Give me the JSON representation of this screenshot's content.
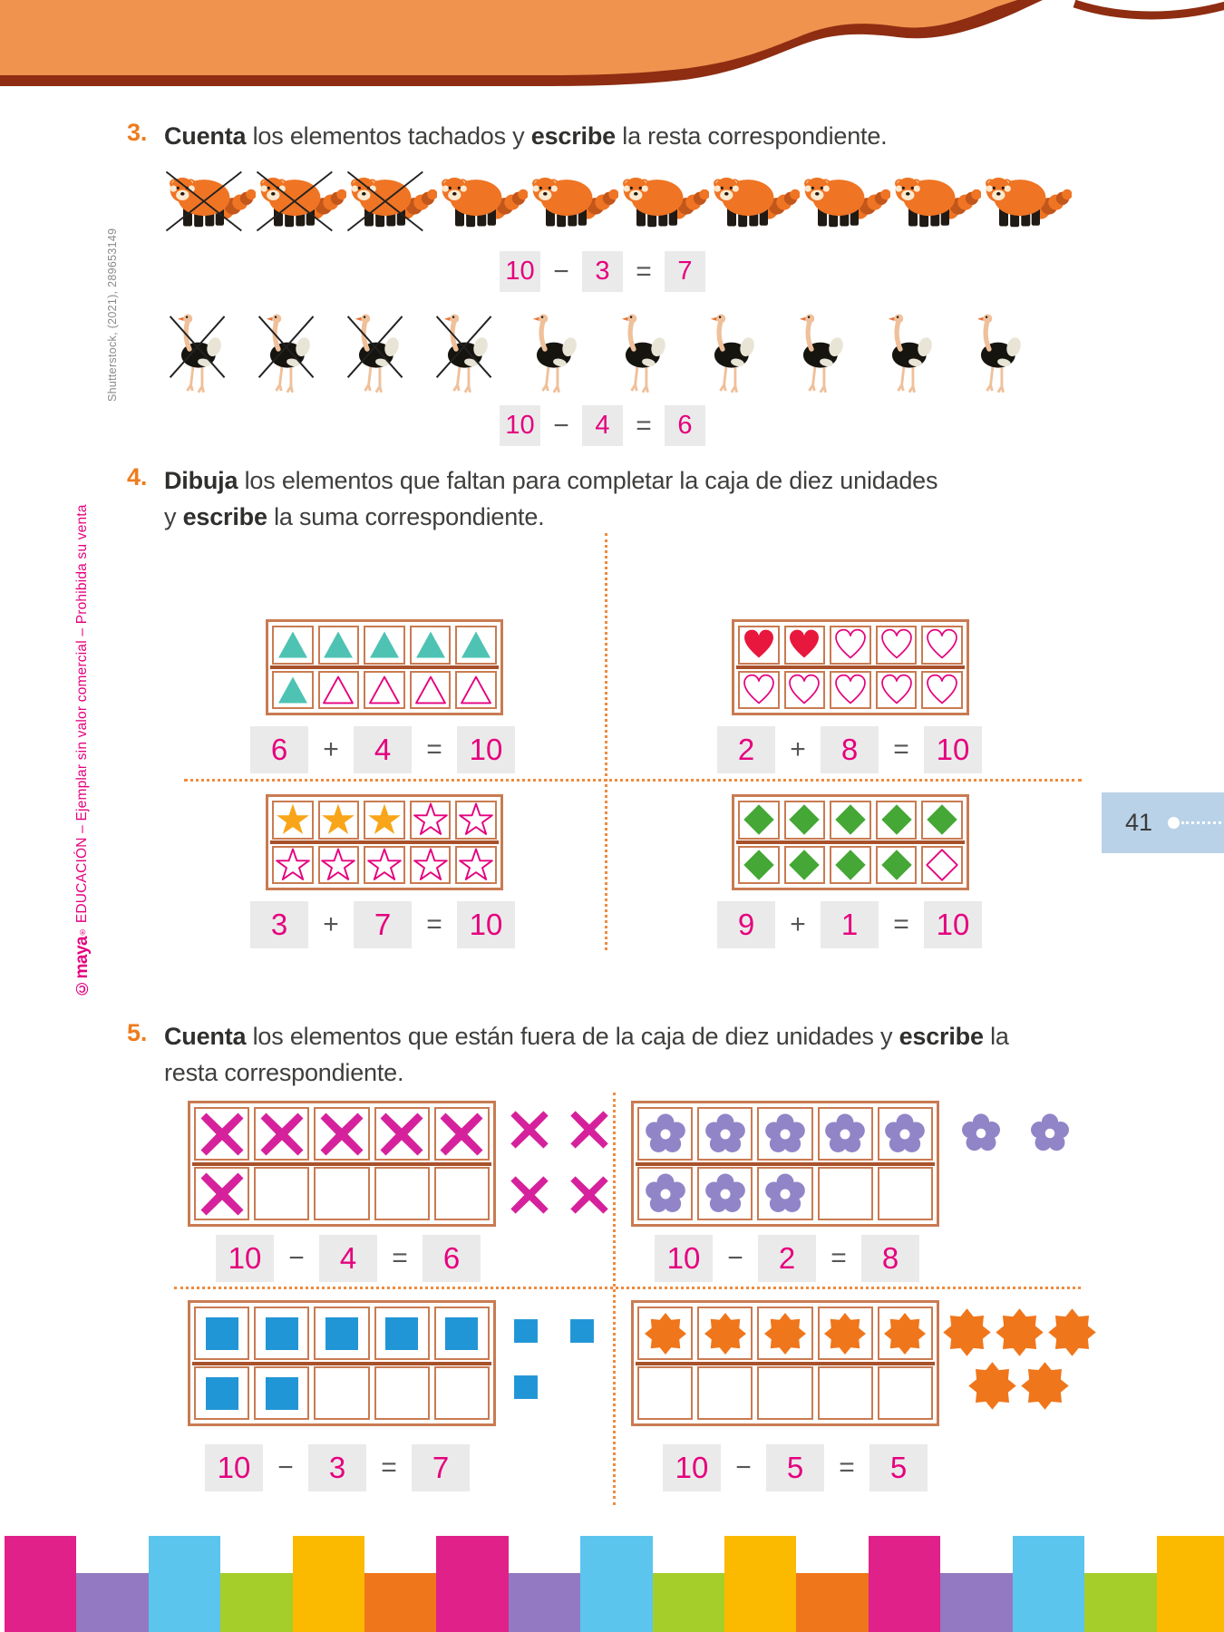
{
  "page_number": "41",
  "colors": {
    "header_orange": "#ef934e",
    "header_maroon": "#8e2d12",
    "accent_orange": "#ee7c1e",
    "answer_pink": "#e5007e",
    "answer_box_gray": "#eaeaea",
    "frame_border_brown": "#c97b52",
    "frame_divider_brown": "#a8512a",
    "dotted_line_orange": "#ef8b3f",
    "badge_blue": "#b9d2e8",
    "text_dark": "#3e3e3c"
  },
  "margin": {
    "photo_credit": "Shutterstock, (2021), 289653149",
    "publisher_logo": "©maya",
    "publisher_reg": "®",
    "publisher_text": " EDUCACIÓN – Ejemplar sin valor comercial – Prohibida su venta"
  },
  "exercise3": {
    "number": "3.",
    "instruction": [
      {
        "t": "Cuenta",
        "b": 1
      },
      {
        "t": " los elementos tachados y "
      },
      {
        "t": "escribe",
        "b": 1
      },
      {
        "t": " la resta correspondiente."
      }
    ],
    "rows": [
      {
        "animal": "red-panda",
        "count": 10,
        "crossed": 3,
        "equation": [
          "10",
          "−",
          "3",
          "=",
          "7"
        ]
      },
      {
        "animal": "ostrich",
        "count": 10,
        "crossed": 4,
        "equation": [
          "10",
          "−",
          "4",
          "=",
          "6"
        ]
      }
    ]
  },
  "exercise4": {
    "number": "4.",
    "instruction": [
      {
        "t": "Dibuja",
        "b": 1
      },
      {
        "t": " los elementos que faltan para completar la caja de diez unidades"
      },
      {
        "br": 1
      },
      {
        "t": "y "
      },
      {
        "t": "escribe",
        "b": 1
      },
      {
        "t": " la suma correspondiente."
      }
    ],
    "frames": [
      {
        "shape": "triangle",
        "filled": 6,
        "outlined": 4,
        "fill_color": "#4ec3b4",
        "outline_color": "#e5007e",
        "equation": [
          "6",
          "+",
          "4",
          "=",
          "10"
        ]
      },
      {
        "shape": "heart",
        "filled": 2,
        "outlined": 8,
        "fill_color": "#e8173d",
        "outline_color": "#e5007e",
        "equation": [
          "2",
          "+",
          "8",
          "=",
          "10"
        ]
      },
      {
        "shape": "star",
        "filled": 3,
        "outlined": 7,
        "fill_color": "#f9a51a",
        "outline_color": "#e5007e",
        "equation": [
          "3",
          "+",
          "7",
          "=",
          "10"
        ]
      },
      {
        "shape": "diamond",
        "filled": 9,
        "outlined": 1,
        "fill_color": "#45a735",
        "outline_color": "#e5007e",
        "equation": [
          "9",
          "+",
          "1",
          "=",
          "10"
        ]
      }
    ]
  },
  "exercise5": {
    "number": "5.",
    "instruction": [
      {
        "t": "Cuenta",
        "b": 1
      },
      {
        "t": " los elementos que están fuera de la caja de diez unidades y "
      },
      {
        "t": "escribe",
        "b": 1
      },
      {
        "t": " la"
      },
      {
        "br": 1
      },
      {
        "t": "resta correspondiente."
      }
    ],
    "frames": [
      {
        "shape": "cross",
        "color": "#d6219c",
        "inside": [
          5,
          1
        ],
        "outside": [
          2,
          2
        ],
        "equation": [
          "10",
          "−",
          "4",
          "=",
          "6"
        ]
      },
      {
        "shape": "flower",
        "color": "#9185c8",
        "inside": [
          5,
          3
        ],
        "outside": [
          2,
          0
        ],
        "equation": [
          "10",
          "−",
          "2",
          "=",
          "8"
        ]
      },
      {
        "shape": "square",
        "color": "#2196d6",
        "inside": [
          5,
          2
        ],
        "outside": [
          2,
          1
        ],
        "equation": [
          "10",
          "−",
          "3",
          "=",
          "7"
        ]
      },
      {
        "shape": "sun",
        "color": "#f0761b",
        "inside": [
          5,
          0
        ],
        "outside": [
          3,
          2
        ],
        "equation": [
          "10",
          "−",
          "5",
          "=",
          "5"
        ]
      }
    ]
  },
  "footer_stripes": {
    "count": 17,
    "colors": [
      "#e0218a",
      "#9379c1",
      "#5bc5ee",
      "#a6ce2b",
      "#fbb900",
      "#f0761b"
    ]
  }
}
